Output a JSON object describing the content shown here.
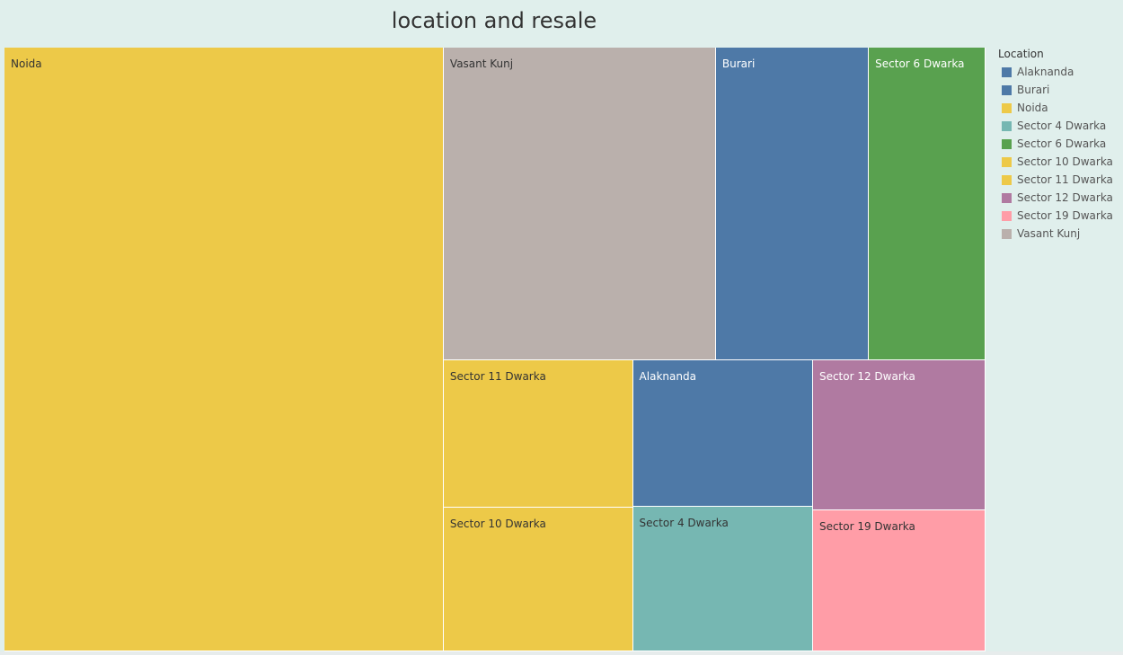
{
  "chart_data": {
    "type": "treemap",
    "title": "location and resale",
    "legend": {
      "title": "Location",
      "placement": "right",
      "items": [
        {
          "label": "Alaknanda",
          "color": "#4e79a7"
        },
        {
          "label": "Burari",
          "color": "#4e79a7"
        },
        {
          "label": "Noida",
          "color": "#edc948"
        },
        {
          "label": "Sector 4 Dwarka",
          "color": "#76b7b2"
        },
        {
          "label": "Sector 6 Dwarka",
          "color": "#59a14f"
        },
        {
          "label": "Sector 10 Dwarka",
          "color": "#edc948"
        },
        {
          "label": "Sector 11 Dwarka",
          "color": "#edc948"
        },
        {
          "label": "Sector 12 Dwarka",
          "color": "#b07aa1"
        },
        {
          "label": "Sector 19 Dwarka",
          "color": "#ff9da7"
        },
        {
          "label": "Vasant Kunj",
          "color": "#bab0ac"
        }
      ]
    },
    "tiles": [
      {
        "label": "Noida",
        "value": 327300,
        "color": "#edc948",
        "text_color": "#333333"
      },
      {
        "label": "Vasant Kunj",
        "value": 105000,
        "color": "#bab0ac",
        "text_color": "#333333"
      },
      {
        "label": "Burari",
        "value": 59000,
        "color": "#4e79a7",
        "text_color": "#ffffff"
      },
      {
        "label": "Sector 6 Dwarka",
        "value": 45000,
        "color": "#59a14f",
        "text_color": "#ffffff"
      },
      {
        "label": "Sector 11 Dwarka",
        "value": 34400,
        "color": "#edc948",
        "text_color": "#333333"
      },
      {
        "label": "Sector 10 Dwarka",
        "value": 33600,
        "color": "#edc948",
        "text_color": "#333333"
      },
      {
        "label": "Alaknanda",
        "value": 32500,
        "color": "#4e79a7",
        "text_color": "#ffffff"
      },
      {
        "label": "Sector 4 Dwarka",
        "value": 32200,
        "color": "#76b7b2",
        "text_color": "#333333"
      },
      {
        "label": "Sector 12 Dwarka",
        "value": 32000,
        "color": "#b07aa1",
        "text_color": "#ffffff"
      },
      {
        "label": "Sector 19 Dwarka",
        "value": 30000,
        "color": "#ff9da7",
        "text_color": "#333333"
      }
    ]
  }
}
